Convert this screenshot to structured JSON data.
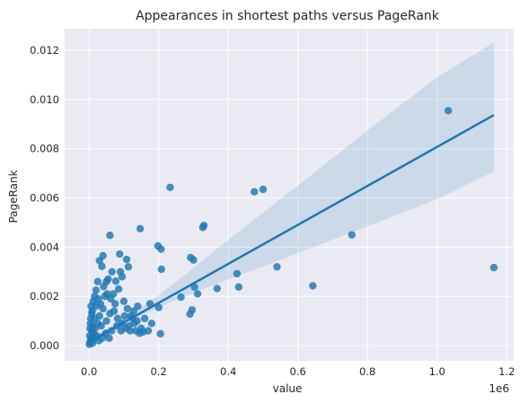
{
  "chart_data": {
    "type": "scatter",
    "title": "Appearances in shortest paths versus PageRank",
    "xlabel": "value",
    "ylabel": "PageRank",
    "x_offset_label": "1e6",
    "x_scale_factor": 1000000,
    "xlim": [
      -70000,
      1220000
    ],
    "ylim": [
      -0.00062,
      0.01288
    ],
    "x_ticks": [
      0,
      200000,
      400000,
      600000,
      800000,
      1000000,
      1200000
    ],
    "x_tick_labels": [
      "0.0",
      "0.2",
      "0.4",
      "0.6",
      "0.8",
      "1.0",
      "1.2"
    ],
    "y_ticks": [
      0,
      0.002,
      0.004,
      0.006,
      0.008,
      0.01,
      0.012
    ],
    "y_tick_labels": [
      "0.000",
      "0.002",
      "0.004",
      "0.006",
      "0.008",
      "0.010",
      "0.012"
    ],
    "grid": true,
    "background_color": "#eaeaf2",
    "point_color": "#1f77b4",
    "regression": {
      "line_start": [
        0,
        0.00015
      ],
      "line_end": [
        1163000,
        0.00937
      ],
      "ci_band": [
        [
          0,
          3e-05,
          0.00027
        ],
        [
          100000,
          0.00087,
          0.00107
        ],
        [
          200000,
          0.00155,
          0.00205
        ],
        [
          300000,
          0.00215,
          0.00315
        ],
        [
          400000,
          0.00268,
          0.0043
        ],
        [
          600000,
          0.00376,
          0.0065
        ],
        [
          800000,
          0.00485,
          0.00875
        ],
        [
          1000000,
          0.00595,
          0.0109
        ],
        [
          1163000,
          0.00708,
          0.01232
        ]
      ]
    },
    "points": [
      [
        1032000,
        0.00955
      ],
      [
        1163000,
        0.00317
      ],
      [
        755000,
        0.0045
      ],
      [
        643000,
        0.00243
      ],
      [
        540000,
        0.0032
      ],
      [
        500000,
        0.00635
      ],
      [
        475000,
        0.00625
      ],
      [
        425000,
        0.00292
      ],
      [
        430000,
        0.00238
      ],
      [
        368000,
        0.00232
      ],
      [
        330000,
        0.00488
      ],
      [
        327000,
        0.0048
      ],
      [
        312000,
        0.0021
      ],
      [
        303000,
        0.00238
      ],
      [
        300000,
        0.00348
      ],
      [
        292000,
        0.00358
      ],
      [
        296000,
        0.00145
      ],
      [
        290000,
        0.00128
      ],
      [
        264000,
        0.00197
      ],
      [
        233000,
        0.00643
      ],
      [
        207000,
        0.00392
      ],
      [
        198000,
        0.00405
      ],
      [
        208000,
        0.0031
      ],
      [
        200000,
        0.00155
      ],
      [
        205000,
        0.00048
      ],
      [
        175000,
        0.0017
      ],
      [
        160000,
        0.0011
      ],
      [
        147000,
        0.00475
      ],
      [
        140000,
        0.0016
      ],
      [
        150000,
        0.0007
      ],
      [
        155000,
        0.00055
      ],
      [
        120000,
        0.0012
      ],
      [
        130000,
        0.0009
      ],
      [
        113000,
        0.0032
      ],
      [
        108000,
        0.0035
      ],
      [
        90000,
        0.003
      ],
      [
        88000,
        0.00372
      ],
      [
        77000,
        0.00262
      ],
      [
        66000,
        0.003
      ],
      [
        60000,
        0.00448
      ],
      [
        55000,
        0.0027
      ],
      [
        50000,
        0.0026
      ],
      [
        40000,
        0.00365
      ],
      [
        37000,
        0.00322
      ],
      [
        30000,
        0.00345
      ],
      [
        25000,
        0.0026
      ],
      [
        20000,
        0.00225
      ],
      [
        95000,
        0.0028
      ],
      [
        85000,
        0.0023
      ],
      [
        100000,
        0.0018
      ],
      [
        70000,
        0.0021
      ],
      [
        45000,
        0.002
      ],
      [
        110000,
        0.0015
      ],
      [
        125000,
        0.0011
      ],
      [
        75000,
        0.0017
      ],
      [
        60000,
        0.0013
      ],
      [
        40000,
        0.0015
      ],
      [
        30000,
        0.0012
      ],
      [
        20000,
        0.0016
      ],
      [
        15000,
        0.0011
      ],
      [
        10000,
        0.0008
      ],
      [
        8000,
        0.0006
      ],
      [
        5000,
        0.0003
      ],
      [
        3000,
        0.00015
      ],
      [
        2000,
        0.0004
      ],
      [
        12000,
        0.0005
      ],
      [
        18000,
        0.0007
      ],
      [
        25000,
        0.0009
      ],
      [
        35000,
        0.0008
      ],
      [
        50000,
        0.001
      ],
      [
        65000,
        0.0006
      ],
      [
        80000,
        0.0008
      ],
      [
        95000,
        0.0009
      ],
      [
        105000,
        0.0007
      ],
      [
        115000,
        0.0008
      ],
      [
        135000,
        0.0006
      ],
      [
        145000,
        0.0005
      ],
      [
        170000,
        0.0006
      ],
      [
        180000,
        0.0009
      ],
      [
        5000,
        0.0011
      ],
      [
        8000,
        0.0013
      ],
      [
        4000,
        0.0009
      ],
      [
        7000,
        0.0002
      ],
      [
        10000,
        0.0001
      ],
      [
        15000,
        0.0003
      ],
      [
        22000,
        0.0004
      ],
      [
        28000,
        0.0002
      ],
      [
        38000,
        0.0003
      ],
      [
        48000,
        0.0005
      ],
      [
        58000,
        0.0003
      ],
      [
        1000,
        5e-05
      ],
      [
        3000,
        0.0007
      ],
      [
        6000,
        0.0016
      ],
      [
        12000,
        0.0018
      ],
      [
        26000,
        0.0019
      ],
      [
        33000,
        0.0017
      ],
      [
        42000,
        0.0024
      ],
      [
        52000,
        0.0021
      ],
      [
        62000,
        0.0019
      ],
      [
        72000,
        0.0014
      ],
      [
        82000,
        0.0011
      ],
      [
        92000,
        0.0006
      ],
      [
        102000,
        0.0012
      ],
      [
        118000,
        0.0006
      ],
      [
        128000,
        0.0014
      ],
      [
        138000,
        0.001
      ],
      [
        16000,
        0.002
      ],
      [
        9000,
        0.0014
      ]
    ]
  }
}
